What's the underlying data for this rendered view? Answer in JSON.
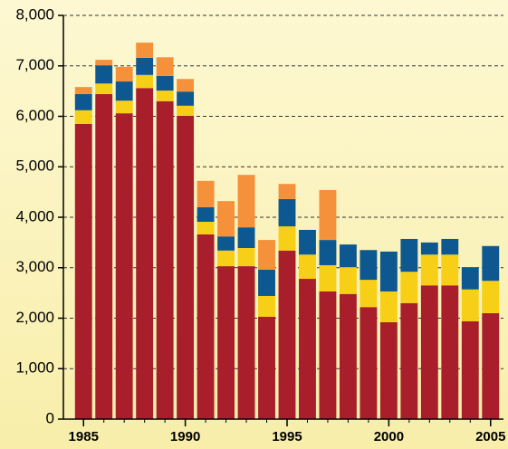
{
  "chart_data": {
    "type": "stacked-bar",
    "categories": [
      "1985",
      null,
      null,
      null,
      null,
      "1990",
      null,
      null,
      null,
      null,
      "1995",
      null,
      null,
      null,
      null,
      "2000",
      null,
      null,
      null,
      null,
      "2005"
    ],
    "series": [
      {
        "color": "#a81f2b",
        "values": [
          5850,
          6440,
          6060,
          6560,
          6300,
          6010,
          3660,
          3030,
          3030,
          2030,
          3340,
          2780,
          2530,
          2480,
          2220,
          1920,
          2300,
          2650,
          2650,
          1940,
          2100
        ]
      },
      {
        "color": "#f6cf16",
        "values": [
          270,
          210,
          250,
          260,
          210,
          200,
          250,
          310,
          360,
          410,
          480,
          480,
          520,
          530,
          540,
          610,
          620,
          610,
          610,
          630,
          640
        ]
      },
      {
        "color": "#0d5890",
        "values": [
          320,
          360,
          380,
          340,
          290,
          280,
          290,
          280,
          410,
          520,
          540,
          490,
          500,
          450,
          590,
          790,
          650,
          240,
          310,
          440,
          690
        ]
      },
      {
        "color": "#f5913a",
        "values": [
          140,
          110,
          290,
          300,
          370,
          250,
          520,
          700,
          1040,
          590,
          300,
          0,
          990,
          0,
          0,
          0,
          0,
          0,
          0,
          0,
          0
        ]
      }
    ],
    "ylim": [
      0,
      8000
    ],
    "yticks": [
      0,
      {
        "value": 1000,
        "label": "1,000"
      },
      {
        "value": 2000,
        "label": "2,000"
      },
      {
        "value": 3000,
        "label": "3,000"
      },
      {
        "value": 4000,
        "label": "4,000"
      },
      {
        "value": 5000,
        "label": "5,000"
      },
      {
        "value": 6000,
        "label": "6,000"
      },
      {
        "value": 7000,
        "label": "7,000"
      },
      {
        "value": 8000,
        "label": "8,000"
      }
    ],
    "grid": true
  }
}
